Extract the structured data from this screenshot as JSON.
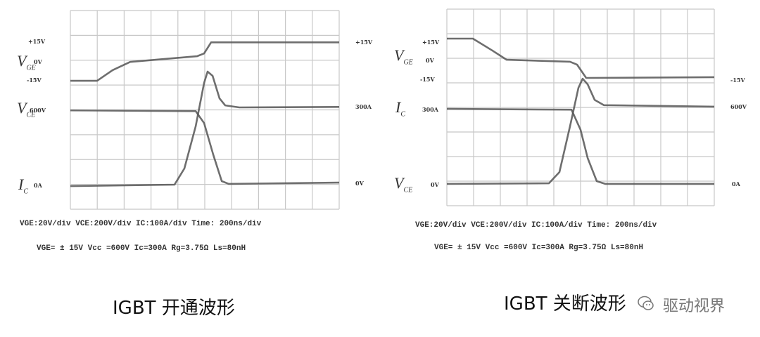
{
  "chart_data": [
    {
      "type": "line",
      "caption": "IGBT 开通波形",
      "xlim_ns": [
        0,
        2000
      ],
      "x_divisions": 10,
      "y_divisions": 8,
      "grid": true,
      "scales": "VGE:20V/div  VCE:200V/div  IC:100A/div  Time: 200ns/div",
      "conditions": "VGE= ± 15V  Vcc =600V  Ic=300A  Rg=3.75Ω  Ls=80nH",
      "left_labels": {
        "vge": "V",
        "vge_sub": "GE",
        "vce": "V",
        "vce_sub": "CE",
        "ic": "I",
        "ic_sub": "C",
        "p15": "+15V",
        "z": "0V",
        "m15": "-15V",
        "v600": "600V",
        "a0": "0A"
      },
      "right_labels": {
        "p15": "+15V",
        "a300": "300A",
        "v0": "0V"
      },
      "series": [
        {
          "name": "VGE",
          "points": [
            [
              0,
              5.17
            ],
            [
              199,
              5.17
            ],
            [
              314,
              5.6
            ],
            [
              445,
              5.93
            ],
            [
              942,
              6.16
            ],
            [
              995,
              6.27
            ],
            [
              1047,
              6.72
            ],
            [
              2000,
              6.72
            ]
          ]
        },
        {
          "name": "VCE",
          "points": [
            [
              0,
              3.98
            ],
            [
              932,
              3.95
            ],
            [
              995,
              3.47
            ],
            [
              1063,
              2.2
            ],
            [
              1126,
              1.13
            ],
            [
              1178,
              1.02
            ],
            [
              2000,
              1.07
            ]
          ]
        },
        {
          "name": "IC",
          "points": [
            [
              0,
              0.93
            ],
            [
              775,
              0.99
            ],
            [
              848,
              1.64
            ],
            [
              932,
              3.33
            ],
            [
              995,
              5.08
            ],
            [
              1021,
              5.54
            ],
            [
              1058,
              5.37
            ],
            [
              1110,
              4.46
            ],
            [
              1152,
              4.18
            ],
            [
              1257,
              4.1
            ],
            [
              2000,
              4.12
            ]
          ]
        }
      ]
    },
    {
      "type": "line",
      "caption": "IGBT 关断波形",
      "xlim_ns": [
        0,
        2000
      ],
      "x_divisions": 10,
      "y_divisions": 8,
      "grid": true,
      "scales": "VGE:20V/div  VCE:200V/div  IC:100A/div  Time: 200ns/div",
      "conditions": "VGE= ± 15V  Vcc =600V  Ic=300A  Rg=3.75Ω  Ls=80nH",
      "left_labels": {
        "vge": "V",
        "vge_sub": "GE",
        "ic": "I",
        "ic_sub": "C",
        "vce": "V",
        "vce_sub": "CE",
        "p15": "+15V",
        "z": "0V",
        "m15": "-15V",
        "a300": "300A",
        "v0": "0V"
      },
      "right_labels": {
        "m15": "-15V",
        "v600": "600V",
        "a0": "0A"
      },
      "series": [
        {
          "name": "VGE",
          "points": [
            [
              0,
              6.8
            ],
            [
              195,
              6.8
            ],
            [
              342,
              6.31
            ],
            [
              447,
              5.94
            ],
            [
              921,
              5.86
            ],
            [
              974,
              5.74
            ],
            [
              1042,
              5.2
            ],
            [
              2000,
              5.23
            ]
          ]
        },
        {
          "name": "IC",
          "points": [
            [
              0,
              3.94
            ],
            [
              932,
              3.91
            ],
            [
              1000,
              3.09
            ],
            [
              1053,
              1.94
            ],
            [
              1121,
              1.0
            ],
            [
              1184,
              0.89
            ],
            [
              2000,
              0.89
            ]
          ]
        },
        {
          "name": "VCE",
          "points": [
            [
              0,
              0.89
            ],
            [
              763,
              0.91
            ],
            [
              842,
              1.37
            ],
            [
              921,
              3.23
            ],
            [
              984,
              4.8
            ],
            [
              1016,
              5.17
            ],
            [
              1053,
              4.94
            ],
            [
              1105,
              4.31
            ],
            [
              1174,
              4.09
            ],
            [
              2000,
              4.03
            ]
          ]
        }
      ]
    }
  ],
  "watermark": {
    "icon": "wechat-icon",
    "text": "驱动视界"
  },
  "colors": {
    "trace": "#555555",
    "trace_light": "#9a9a9a",
    "grid": "#c8c8c8"
  }
}
